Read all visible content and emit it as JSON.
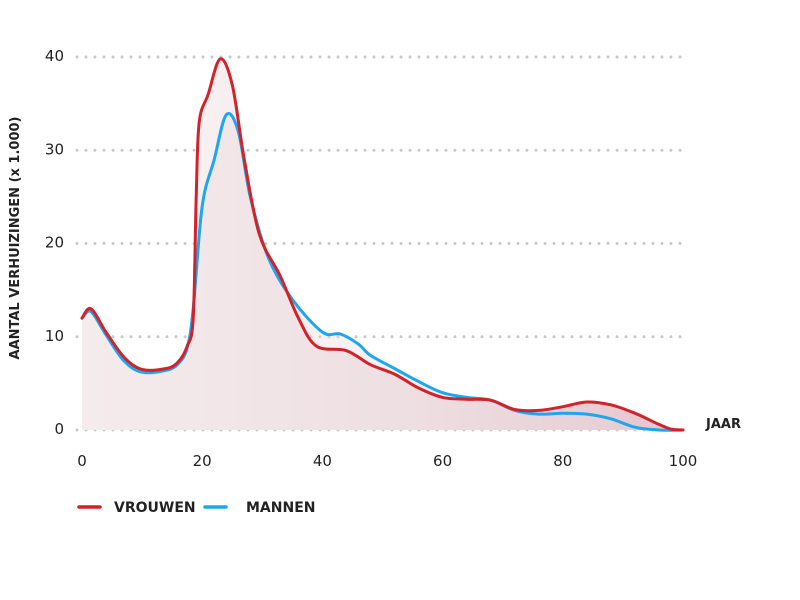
{
  "chart_data": {
    "type": "area",
    "ylabel": "AANTAL VERHUIZINGEN (x 1.000)",
    "xlabel": "JAAR",
    "xlim": [
      0,
      100
    ],
    "ylim": [
      0,
      40
    ],
    "x_ticks": [
      0,
      20,
      40,
      60,
      80,
      100
    ],
    "y_ticks": [
      0,
      10,
      20,
      30,
      40
    ],
    "grid": true,
    "legend_position": "bottom-left",
    "series": [
      {
        "name": "VROUWEN",
        "color": "#d1232a",
        "points": [
          [
            0,
            12
          ],
          [
            1.5,
            13
          ],
          [
            4,
            10.5
          ],
          [
            7,
            7.8
          ],
          [
            10,
            6.5
          ],
          [
            14,
            6.6
          ],
          [
            16,
            7.3
          ],
          [
            17.5,
            9
          ],
          [
            18.5,
            12
          ],
          [
            19,
            25
          ],
          [
            19.5,
            33
          ],
          [
            21,
            36
          ],
          [
            23,
            39.8
          ],
          [
            25,
            37
          ],
          [
            27,
            29
          ],
          [
            29.5,
            21
          ],
          [
            33,
            16.5
          ],
          [
            36,
            12
          ],
          [
            39,
            9
          ],
          [
            44,
            8.5
          ],
          [
            48,
            7
          ],
          [
            52,
            6
          ],
          [
            56,
            4.5
          ],
          [
            60,
            3.5
          ],
          [
            64,
            3.3
          ],
          [
            68,
            3.2
          ],
          [
            72,
            2.2
          ],
          [
            76,
            2.1
          ],
          [
            80,
            2.5
          ],
          [
            84,
            3
          ],
          [
            88,
            2.7
          ],
          [
            92,
            1.8
          ],
          [
            96,
            0.6
          ],
          [
            98,
            0.1
          ],
          [
            100,
            0
          ]
        ]
      },
      {
        "name": "MANNEN",
        "color": "#1ea6ef",
        "points": [
          [
            0,
            12
          ],
          [
            1.5,
            12.7
          ],
          [
            4,
            10.2
          ],
          [
            7,
            7.4
          ],
          [
            10,
            6.2
          ],
          [
            14,
            6.4
          ],
          [
            16,
            7.1
          ],
          [
            17.5,
            8.8
          ],
          [
            18.5,
            13
          ],
          [
            20,
            24
          ],
          [
            22,
            29
          ],
          [
            24,
            33.8
          ],
          [
            26,
            32
          ],
          [
            28,
            25
          ],
          [
            31,
            18.5
          ],
          [
            35,
            14
          ],
          [
            40,
            10.5
          ],
          [
            43,
            10.3
          ],
          [
            46,
            9.2
          ],
          [
            48,
            8
          ],
          [
            52,
            6.6
          ],
          [
            56,
            5.2
          ],
          [
            60,
            4
          ],
          [
            64,
            3.5
          ],
          [
            68,
            3.2
          ],
          [
            72,
            2.1
          ],
          [
            76,
            1.7
          ],
          [
            80,
            1.8
          ],
          [
            84,
            1.7
          ],
          [
            88,
            1.2
          ],
          [
            92,
            0.3
          ],
          [
            96,
            0
          ],
          [
            100,
            0
          ]
        ]
      }
    ]
  }
}
